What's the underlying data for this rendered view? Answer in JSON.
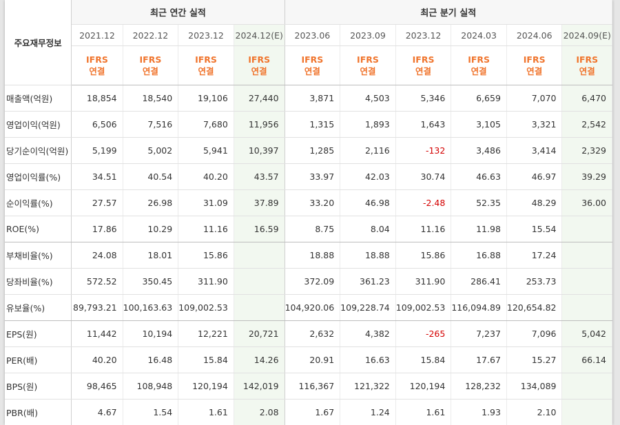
{
  "table": {
    "corner_label": "주요재무정보",
    "annual_title": "최근 연간 실적",
    "quarterly_title": "최근 분기 실적",
    "periods": [
      "2021.12",
      "2022.12",
      "2023.12",
      "2024.12(E)",
      "2023.06",
      "2023.09",
      "2023.12",
      "2024.03",
      "2024.06",
      "2024.09(E)"
    ],
    "ifrs_line1": "IFRS",
    "ifrs_line2": "연결",
    "rows": [
      {
        "label": "매출액(억원)",
        "values": [
          "18,854",
          "18,540",
          "19,106",
          "27,440",
          "3,871",
          "4,503",
          "5,346",
          "6,659",
          "7,070",
          "6,470"
        ]
      },
      {
        "label": "영업이익(억원)",
        "values": [
          "6,506",
          "7,516",
          "7,680",
          "11,956",
          "1,315",
          "1,893",
          "1,643",
          "3,105",
          "3,321",
          "2,542"
        ]
      },
      {
        "label": "당기순이익(억원)",
        "values": [
          "5,199",
          "5,002",
          "5,941",
          "10,397",
          "1,285",
          "2,116",
          "-132",
          "3,486",
          "3,414",
          "2,329"
        ]
      },
      {
        "label": "영업이익률(%)",
        "values": [
          "34.51",
          "40.54",
          "40.20",
          "43.57",
          "33.97",
          "42.03",
          "30.74",
          "46.63",
          "46.97",
          "39.29"
        ]
      },
      {
        "label": "순이익률(%)",
        "values": [
          "27.57",
          "26.98",
          "31.09",
          "37.89",
          "33.20",
          "46.98",
          "-2.48",
          "52.35",
          "48.29",
          "36.00"
        ]
      },
      {
        "label": "ROE(%)",
        "values": [
          "17.86",
          "10.29",
          "11.16",
          "16.59",
          "8.75",
          "8.04",
          "11.16",
          "11.98",
          "15.54",
          ""
        ]
      },
      {
        "label": "부채비율(%)",
        "values": [
          "24.08",
          "18.01",
          "15.86",
          "",
          "18.88",
          "18.88",
          "15.86",
          "16.88",
          "17.24",
          ""
        ]
      },
      {
        "label": "당좌비율(%)",
        "values": [
          "572.52",
          "350.45",
          "311.90",
          "",
          "372.09",
          "361.23",
          "311.90",
          "286.41",
          "253.73",
          ""
        ]
      },
      {
        "label": "유보율(%)",
        "values": [
          "89,793.21",
          "100,163.63",
          "109,002.53",
          "",
          "104,920.06",
          "109,228.74",
          "109,002.53",
          "116,094.89",
          "120,654.82",
          ""
        ]
      },
      {
        "label": "EPS(원)",
        "values": [
          "11,442",
          "10,194",
          "12,221",
          "20,721",
          "2,632",
          "4,382",
          "-265",
          "7,237",
          "7,096",
          "5,042"
        ]
      },
      {
        "label": "PER(배)",
        "values": [
          "40.20",
          "16.48",
          "15.84",
          "14.26",
          "20.91",
          "16.63",
          "15.84",
          "17.67",
          "15.27",
          "66.14"
        ]
      },
      {
        "label": "BPS(원)",
        "values": [
          "98,465",
          "108,948",
          "120,194",
          "142,019",
          "116,367",
          "121,322",
          "120,194",
          "128,232",
          "134,089",
          ""
        ]
      },
      {
        "label": "PBR(배)",
        "values": [
          "4.67",
          "1.54",
          "1.61",
          "2.08",
          "1.67",
          "1.24",
          "1.61",
          "1.93",
          "2.10",
          ""
        ]
      }
    ]
  },
  "colors": {
    "ifrs_text": "#f0742c",
    "negative_text": "#d40000",
    "estimate_column_bg": "#f2f8f0",
    "group_header_bg": "#f7f7f7"
  }
}
